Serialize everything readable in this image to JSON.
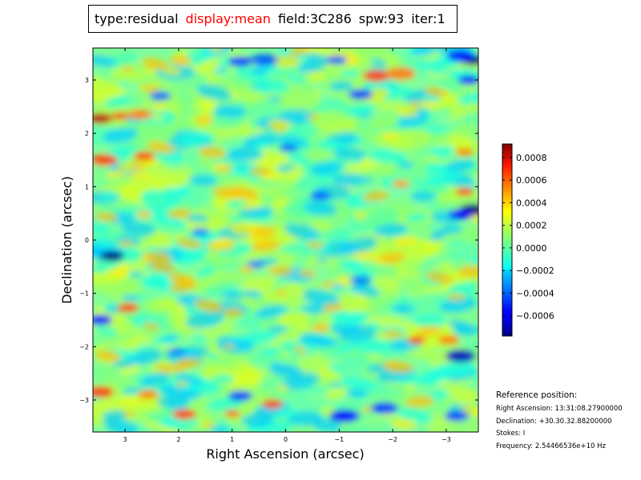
{
  "title": {
    "items": [
      {
        "text": "type:residual",
        "highlight": false
      },
      {
        "text": "display:mean",
        "highlight": true
      },
      {
        "text": "field:3C286",
        "highlight": false
      },
      {
        "text": "spw:93",
        "highlight": false
      },
      {
        "text": "iter:1",
        "highlight": false
      }
    ],
    "highlight_color": "#ff0000"
  },
  "chart_data": {
    "type": "heatmap",
    "xlabel": "Right Ascension (arcsec)",
    "ylabel": "Declination (arcsec)",
    "xlim": [
      3.6,
      -3.6
    ],
    "ylim": [
      -3.6,
      3.6
    ],
    "xticks": [
      3,
      2,
      1,
      0,
      -1,
      -2,
      -3
    ],
    "xtick_labels": [
      "3",
      "2",
      "1",
      "0",
      "−1",
      "−2",
      "−3"
    ],
    "yticks": [
      3,
      2,
      1,
      0,
      -1,
      -2,
      -3
    ],
    "ytick_labels": [
      "3",
      "2",
      "1",
      "0",
      "−1",
      "−2",
      "−3"
    ],
    "colormap": "jet",
    "value_range": [
      -0.00078,
      0.00092
    ],
    "colorbar": {
      "ticks": [
        0.0008,
        0.0006,
        0.0004,
        0.0002,
        0.0,
        -0.0002,
        -0.0004,
        -0.0006
      ],
      "tick_labels": [
        "0.0008",
        "0.0006",
        "0.0004",
        "0.0002",
        "0.0000",
        "−0.0002",
        "−0.0004",
        "−0.0006"
      ]
    },
    "grid": false
  },
  "reference": {
    "heading": "Reference position:",
    "ra": "Right Ascension: 13:31:08.27900000",
    "dec": "Declination: +30.30.32.88200000",
    "stokes": "Stokes: I",
    "freq": "Frequency: 2.54466536e+10 Hz"
  }
}
